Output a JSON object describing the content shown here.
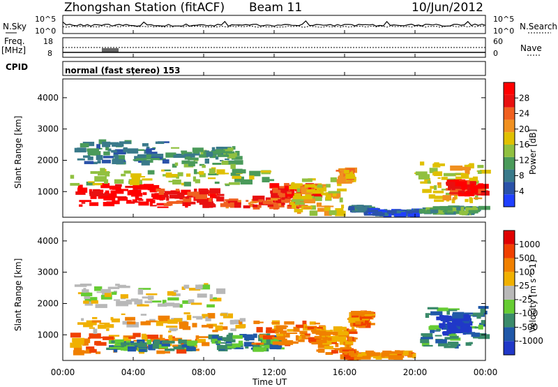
{
  "header": {
    "station": "Zhongshan Station (fitACF)",
    "beam": "Beam 11",
    "date": "10/Jun/2012"
  },
  "strips": {
    "nsky_label": "N.Sky",
    "nsky_ticks": [
      "10^5",
      "10^0"
    ],
    "nsearch_label": "N.Search",
    "nsearch_ticks": [
      "10^5",
      "10^0"
    ],
    "freq_label_1": "Freq.",
    "freq_label_2": "[MHz]",
    "freq_ticks": [
      "18",
      "8"
    ],
    "nave_label": "Nave",
    "nave_ticks": [
      "60",
      "0"
    ],
    "cpid_label": "CPID",
    "cpid_value": "normal (fast stereo) 153"
  },
  "colors": {
    "power": [
      "#2040ff",
      "#2a52a8",
      "#3a7a8a",
      "#4a9a5a",
      "#90c040",
      "#e0c000",
      "#f09020",
      "#f06020",
      "#e81010",
      "#ff0000"
    ],
    "velocity": [
      "#2038c8",
      "#2058a8",
      "#3a8a6a",
      "#66cc33",
      "#b8b8b8",
      "#f0b000",
      "#f08000",
      "#f04000",
      "#e00000"
    ]
  },
  "chart_data": [
    {
      "type": "heatmap",
      "name": "power",
      "ylabel": "Slant Range [km]",
      "xlabel": "Time UT",
      "x_ticks": [
        "00:00",
        "04:00",
        "08:00",
        "12:00",
        "16:00",
        "20:00",
        "00:00"
      ],
      "xlim_hours": [
        0,
        24
      ],
      "ylim_km": [
        180,
        4600
      ],
      "y_ticks": [
        1000,
        2000,
        3000,
        4000
      ],
      "colorbar_label": "Power [dB]",
      "colorbar_ticks": [
        "28",
        "24",
        "20",
        "16",
        "12",
        "8",
        "4"
      ],
      "regions": [
        {
          "t0": 1.0,
          "t1": 5.5,
          "r0": 550,
          "r1": 1200,
          "level": 9
        },
        {
          "t0": 5.5,
          "t1": 9.0,
          "r0": 500,
          "r1": 1050,
          "level": 8
        },
        {
          "t0": 9.2,
          "t1": 13.8,
          "r0": 500,
          "r1": 800,
          "level": 7
        },
        {
          "t0": 12.0,
          "t1": 14.5,
          "r0": 800,
          "r1": 1200,
          "level": 8
        },
        {
          "t0": 0.5,
          "t1": 12.0,
          "r0": 1200,
          "r1": 1700,
          "level": 4
        },
        {
          "t0": 1.0,
          "t1": 6.0,
          "r0": 1900,
          "r1": 2600,
          "level": 2
        },
        {
          "t0": 6.0,
          "t1": 10.0,
          "r0": 1800,
          "r1": 2400,
          "level": 3
        },
        {
          "t0": 13.0,
          "t1": 16.0,
          "r0": 300,
          "r1": 1400,
          "level": 5
        },
        {
          "t0": 15.8,
          "t1": 16.4,
          "r0": 1300,
          "r1": 1700,
          "level": 6
        },
        {
          "t0": 16.4,
          "t1": 17.5,
          "r0": 400,
          "r1": 500,
          "level": 2
        },
        {
          "t0": 17.2,
          "t1": 20.2,
          "r0": 250,
          "r1": 400,
          "level": 1
        },
        {
          "t0": 20.3,
          "t1": 24.0,
          "r0": 700,
          "r1": 1900,
          "level": 5
        },
        {
          "t0": 22.0,
          "t1": 24.0,
          "r0": 900,
          "r1": 1300,
          "level": 8
        },
        {
          "t0": 20.5,
          "t1": 24.0,
          "r0": 300,
          "r1": 500,
          "level": 3
        }
      ]
    },
    {
      "type": "heatmap",
      "name": "velocity",
      "ylabel": "Slant Range [km]",
      "xlabel": "Time UT",
      "x_ticks": [
        "00:00",
        "04:00",
        "08:00",
        "12:00",
        "16:00",
        "20:00",
        "00:00"
      ],
      "xlim_hours": [
        0,
        24
      ],
      "ylim_km": [
        180,
        4600
      ],
      "y_ticks": [
        1000,
        2000,
        3000,
        4000
      ],
      "colorbar_label": "Velocity [m s^-1]",
      "colorbar_ticks": [
        "1000",
        "500",
        "100",
        "25",
        "-25",
        "-100",
        "-500",
        "-1000"
      ],
      "regions": [
        {
          "t0": 0.5,
          "t1": 8.5,
          "r0": 400,
          "r1": 1000,
          "level": 6
        },
        {
          "t0": 2.5,
          "t1": 7.5,
          "r0": 500,
          "r1": 800,
          "level": 2
        },
        {
          "t0": 8.5,
          "t1": 12.5,
          "r0": 500,
          "r1": 1000,
          "level": 2
        },
        {
          "t0": 11.0,
          "t1": 15.0,
          "r0": 700,
          "r1": 1400,
          "level": 6
        },
        {
          "t0": 0.8,
          "t1": 10.5,
          "r0": 1100,
          "r1": 1700,
          "level": 5
        },
        {
          "t0": 1.0,
          "t1": 9.0,
          "r0": 1900,
          "r1": 2600,
          "level": 4
        },
        {
          "t0": 14.5,
          "t1": 16.5,
          "r0": 400,
          "r1": 1200,
          "level": 6
        },
        {
          "t0": 16.5,
          "t1": 17.5,
          "r0": 1300,
          "r1": 1700,
          "level": 6
        },
        {
          "t0": 16.0,
          "t1": 20.0,
          "r0": 250,
          "r1": 450,
          "level": 6
        },
        {
          "t0": 20.5,
          "t1": 24.0,
          "r0": 600,
          "r1": 1900,
          "level": 2
        },
        {
          "t0": 21.5,
          "t1": 23.0,
          "r0": 1000,
          "r1": 1600,
          "level": 0
        }
      ]
    }
  ]
}
